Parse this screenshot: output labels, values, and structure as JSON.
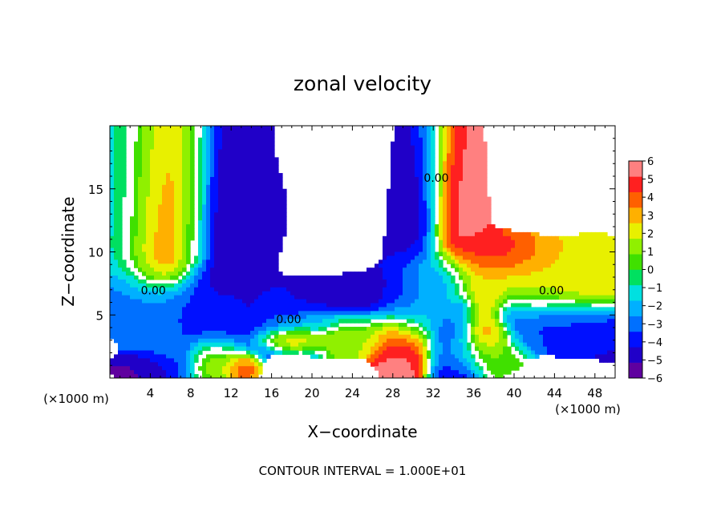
{
  "chart_data": {
    "type": "heatmap",
    "title": "zonal velocity",
    "xlabel": "X−coordinate",
    "ylabel": "Z−coordinate",
    "x_unit_left": "(×1000 m)",
    "x_unit_right": "(×1000 m)",
    "xlim": [
      0,
      50
    ],
    "ylim": [
      0,
      20
    ],
    "x_ticks": [
      4,
      8,
      12,
      16,
      20,
      24,
      28,
      32,
      36,
      40,
      44,
      48
    ],
    "y_ticks": [
      5,
      10,
      15
    ],
    "colorbar": {
      "min": -6,
      "max": 6,
      "ticks": [
        6,
        5,
        4,
        3,
        2,
        1,
        0,
        -1,
        -2,
        -3,
        -4,
        -5,
        -6
      ],
      "tick_labels": [
        "6",
        "5",
        "4",
        "3",
        "2",
        "1",
        "0",
        "−1",
        "−2",
        "−3",
        "−4",
        "−5",
        "−6"
      ],
      "colors": [
        "#5f009f",
        "#2000c8",
        "#0010ff",
        "#0070ff",
        "#00b0ff",
        "#00e0e0",
        "#00e060",
        "#40e000",
        "#90f000",
        "#e8f000",
        "#ffb000",
        "#ff6000",
        "#ff2020",
        "#ff8080"
      ]
    },
    "contour_labels": [
      {
        "text": "0.00",
        "x": 4.3,
        "y": 6.9
      },
      {
        "text": "0.00",
        "x": 17.7,
        "y": 4.6
      },
      {
        "text": "0.00",
        "x": 32.3,
        "y": 15.8
      },
      {
        "text": "0.00",
        "x": 43.7,
        "y": 6.9
      }
    ],
    "contour_interval_text": "CONTOUR INTERVAL =  1.000E+01",
    "field": {
      "vertical_bands": [
        {
          "x0": 1.8,
          "y0": 10.6,
          "x1": 3.5,
          "y1": 19.8,
          "w": 6.0,
          "val": -1.2
        },
        {
          "x0": 5.1,
          "y0": 10.3,
          "x1": 5.8,
          "y1": 19.8,
          "w": 4.0,
          "val": 5.5
        },
        {
          "x0": 8.1,
          "y0": 10.0,
          "x1": 8.6,
          "y1": 19.8,
          "w": 1.6,
          "val": 1.0
        },
        {
          "x0": 11.3,
          "y0": 5.3,
          "x1": 11.3,
          "y1": 19.8,
          "w": 4.8,
          "val": -4.8
        },
        {
          "x0": 14.2,
          "y0": 12.1,
          "x1": 14.2,
          "y1": 14.2,
          "w": 2.8,
          "val": -5.0
        },
        {
          "x0": 29.7,
          "y0": 5.7,
          "x1": 31.2,
          "y1": 19.8,
          "w": 3.0,
          "val": -5.0
        },
        {
          "x0": 34.4,
          "y0": 12.0,
          "x1": 33.7,
          "y1": 19.8,
          "w": 3.2,
          "val": 5.5
        },
        {
          "x0": 34.2,
          "y0": 0.0,
          "x1": 33.2,
          "y1": 7.0,
          "w": 2.6,
          "val": -4.5
        }
      ],
      "horizontal_bands": [
        {
          "x0": 0.0,
          "y0": 6.2,
          "x1": 20.0,
          "y1": 4.7,
          "w": 2.6,
          "val": -3.5
        },
        {
          "x0": 14.0,
          "y0": 5.1,
          "x1": 31.8,
          "y1": 6.9,
          "w": 2.2,
          "val": -4.8
        },
        {
          "x0": 31.5,
          "y0": 7.0,
          "x1": 48.5,
          "y1": 7.9,
          "w": 3.5,
          "val": 2.5
        },
        {
          "x0": 40.5,
          "y0": 4.8,
          "x1": 49.5,
          "y1": 3.8,
          "w": 2.4,
          "val": -4.5
        }
      ],
      "blobs": [
        {
          "x": 5.0,
          "y": 2.8,
          "rx": 3.0,
          "ry": 2.6,
          "val": -3.0
        },
        {
          "x": 3.3,
          "y": 0.8,
          "rx": 2.6,
          "ry": 1.2,
          "val": -5.5
        },
        {
          "x": 10.7,
          "y": 1.7,
          "rx": 2.4,
          "ry": 1.8,
          "val": 2.5
        },
        {
          "x": 13.0,
          "y": 0.9,
          "rx": 1.6,
          "ry": 1.1,
          "val": 5.0
        },
        {
          "x": 18.3,
          "y": 3.3,
          "rx": 3.8,
          "ry": 0.9,
          "val": 5.0
        },
        {
          "x": 28.9,
          "y": 2.7,
          "rx": 2.5,
          "ry": 3.0,
          "val": 5.5
        },
        {
          "x": 24.0,
          "y": 3.4,
          "rx": 4.0,
          "ry": 1.5,
          "val": 1.5
        },
        {
          "x": 37.5,
          "y": 3.5,
          "rx": 2.0,
          "ry": 1.2,
          "val": 4.0
        },
        {
          "x": 36.5,
          "y": 2.3,
          "rx": 4.0,
          "ry": 2.0,
          "val": 0.8
        },
        {
          "x": 34.6,
          "y": 5.5,
          "rx": 1.0,
          "ry": 1.0,
          "val": -3.5
        },
        {
          "x": 45.5,
          "y": 3.6,
          "rx": 4.5,
          "ry": 1.2,
          "val": -3.0
        },
        {
          "x": 42.0,
          "y": 6.2,
          "rx": 2.5,
          "ry": 1.1,
          "val": 1.0
        },
        {
          "x": 38.5,
          "y": 9.8,
          "rx": 3.5,
          "ry": 1.4,
          "val": 5.0
        },
        {
          "x": 21.0,
          "y": 4.6,
          "rx": 6.0,
          "ry": 0.7,
          "val": 0.5
        }
      ]
    }
  }
}
